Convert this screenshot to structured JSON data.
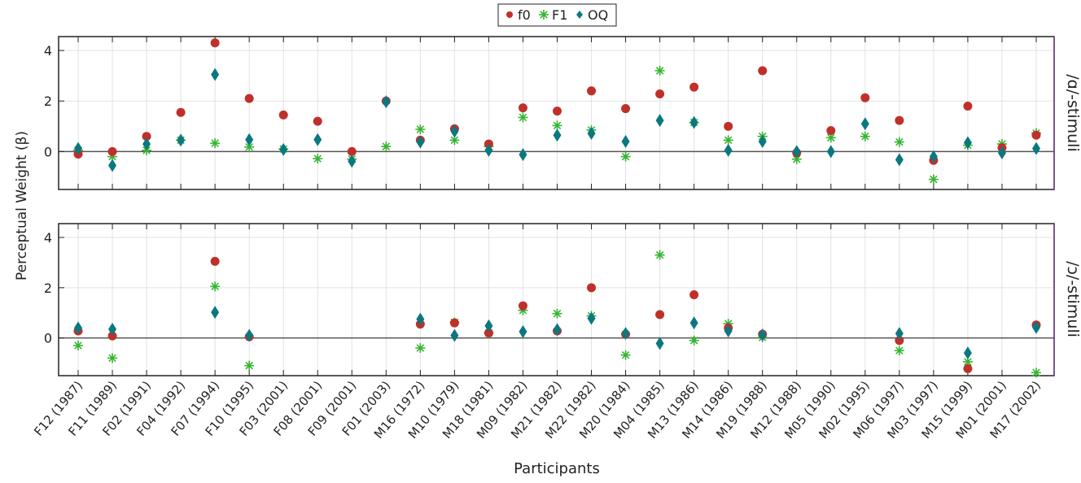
{
  "chart_data": {
    "type": "scatter",
    "xlabel": "Participants",
    "ylabel": "Perceptual Weight (β)",
    "categories": [
      "F12 (1987)",
      "F11 (1989)",
      "F02 (1991)",
      "F04 (1992)",
      "F07 (1994)",
      "F10 (1995)",
      "F03 (2001)",
      "F08 (2001)",
      "F09 (2001)",
      "F01 (2003)",
      "M16 (1972)",
      "M10 (1979)",
      "M18 (1981)",
      "M09 (1982)",
      "M21 (1982)",
      "M22 (1982)",
      "M20 (1984)",
      "M04 (1985)",
      "M13 (1986)",
      "M14 (1986)",
      "M19 (1988)",
      "M12 (1988)",
      "M05 (1990)",
      "M02 (1995)",
      "M06 (1997)",
      "M03 (1997)",
      "M15 (1999)",
      "M01 (2001)",
      "M17 (2002)"
    ],
    "legend": {
      "placement": "top-center",
      "entries": [
        "f0",
        "F1",
        "OQ"
      ]
    },
    "colors": {
      "f0": "#c0302a",
      "F1": "#35b530",
      "OQ": "#0b7880",
      "frame": "#7a3d8c"
    },
    "yticks": [
      0,
      2,
      4
    ],
    "ylim": [
      -1.5,
      4.55
    ],
    "grid": true,
    "panels": [
      {
        "label": "/ɑ/-stimuli",
        "series": [
          {
            "name": "f0",
            "marker": "circle",
            "values": [
              -0.1,
              0.0,
              0.6,
              1.55,
              4.3,
              2.1,
              1.45,
              1.2,
              0.0,
              2.0,
              0.45,
              0.9,
              0.3,
              1.73,
              1.6,
              2.4,
              1.7,
              2.28,
              2.55,
              1.0,
              3.2,
              -0.05,
              0.83,
              2.13,
              1.23,
              -0.35,
              1.8,
              0.15,
              0.65
            ]
          },
          {
            "name": "F1",
            "marker": "asterisk",
            "values": [
              0.05,
              -0.2,
              0.05,
              0.45,
              0.33,
              0.18,
              0.1,
              -0.28,
              -0.3,
              0.2,
              0.88,
              0.45,
              0.2,
              1.35,
              1.03,
              0.85,
              -0.2,
              3.2,
              1.15,
              0.45,
              0.6,
              -0.3,
              0.55,
              0.6,
              0.38,
              -1.1,
              0.25,
              0.3,
              0.73
            ]
          },
          {
            "name": "OQ",
            "marker": "diamond",
            "values": [
              0.12,
              -0.55,
              0.3,
              0.45,
              3.05,
              0.47,
              0.08,
              0.47,
              -0.38,
              1.97,
              0.38,
              0.8,
              0.05,
              -0.12,
              0.65,
              0.72,
              0.4,
              1.23,
              1.15,
              0.05,
              0.4,
              0.0,
              0.0,
              1.1,
              -0.32,
              -0.2,
              0.35,
              -0.05,
              0.12
            ]
          }
        ]
      },
      {
        "label": "/ɔ/-stimuli",
        "series": [
          {
            "name": "f0",
            "marker": "circle",
            "values": [
              0.28,
              0.08,
              null,
              null,
              3.05,
              0.05,
              null,
              null,
              null,
              null,
              0.55,
              0.6,
              0.2,
              1.28,
              0.28,
              2.0,
              0.15,
              0.93,
              1.72,
              0.4,
              0.15,
              null,
              null,
              null,
              -0.1,
              null,
              -1.22,
              null,
              0.52
            ]
          },
          {
            "name": "F1",
            "marker": "asterisk",
            "values": [
              -0.3,
              -0.8,
              null,
              null,
              2.05,
              -1.1,
              null,
              null,
              null,
              null,
              -0.4,
              0.62,
              0.2,
              1.1,
              0.97,
              0.88,
              -0.68,
              3.3,
              -0.1,
              0.57,
              0.02,
              null,
              null,
              null,
              -0.5,
              null,
              -0.95,
              null,
              -1.38
            ]
          },
          {
            "name": "OQ",
            "marker": "diamond",
            "values": [
              0.4,
              0.35,
              null,
              null,
              1.02,
              0.1,
              null,
              null,
              null,
              null,
              0.75,
              0.1,
              0.48,
              0.25,
              0.33,
              0.78,
              0.18,
              -0.22,
              0.6,
              0.28,
              0.12,
              null,
              null,
              null,
              0.18,
              null,
              -0.6,
              null,
              0.42
            ]
          }
        ]
      }
    ]
  }
}
